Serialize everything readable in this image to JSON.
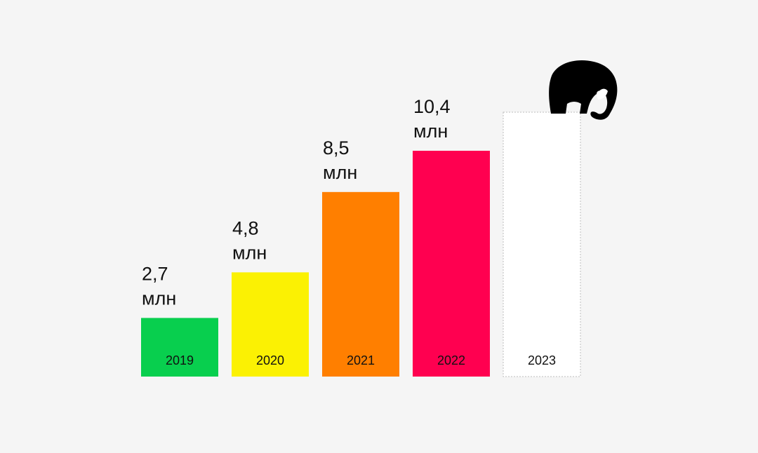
{
  "chart_data": {
    "type": "bar",
    "categories": [
      "2019",
      "2020",
      "2021",
      "2022",
      "2023"
    ],
    "values": [
      2.7,
      4.8,
      8.5,
      10.4,
      null
    ],
    "value_labels": [
      "2,7",
      "4,8",
      "8,5",
      "10,4",
      ""
    ],
    "unit": "млн",
    "colors": [
      "#08cf4e",
      "#fbf103",
      "#ff7f00",
      "#ff0050",
      "#ffffff"
    ],
    "placeholder_bar": {
      "category": "2023",
      "style": "dashed-outline",
      "mascot": "elephant-icon"
    },
    "grid": false,
    "legend": "none",
    "ylim": [
      0,
      10.4
    ]
  }
}
